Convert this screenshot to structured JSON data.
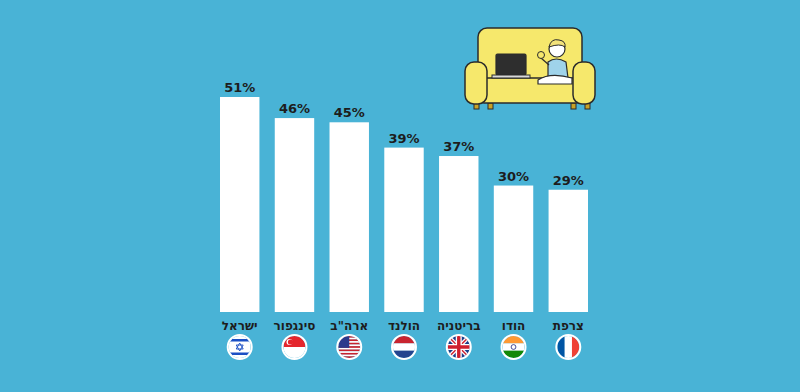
{
  "chart_data": {
    "type": "bar",
    "categories": [
      "ישראל",
      "סינגפור",
      "ארה\"ב",
      "הולנד",
      "בריטניה",
      "הודו",
      "צרפת"
    ],
    "values": [
      51,
      46,
      45,
      39,
      37,
      30,
      29
    ],
    "value_labels": [
      "51%",
      "46%",
      "45%",
      "39%",
      "37%",
      "30%",
      "29%"
    ],
    "color": "#ffffff",
    "ylim": [
      0,
      51
    ],
    "data_labels": true,
    "tick_labels": "x"
  }
}
